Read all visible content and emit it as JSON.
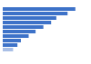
{
  "chart_data": {
    "type": "bar",
    "orientation": "horizontal",
    "categories": [
      null,
      null,
      null,
      null,
      null,
      null,
      null,
      null,
      null,
      null
    ],
    "values": [
      84,
      75,
      62,
      56,
      47,
      38,
      30,
      21,
      17,
      12
    ],
    "colors": [
      "#3d72c8",
      "#3d72c8",
      "#3d72c8",
      "#3d72c8",
      "#3d72c8",
      "#3d72c8",
      "#3d72c8",
      "#3d72c8",
      "#3d72c8",
      "#a9bfe6"
    ],
    "xlim": [
      0,
      100
    ],
    "tick_labels": false,
    "grid": false
  }
}
